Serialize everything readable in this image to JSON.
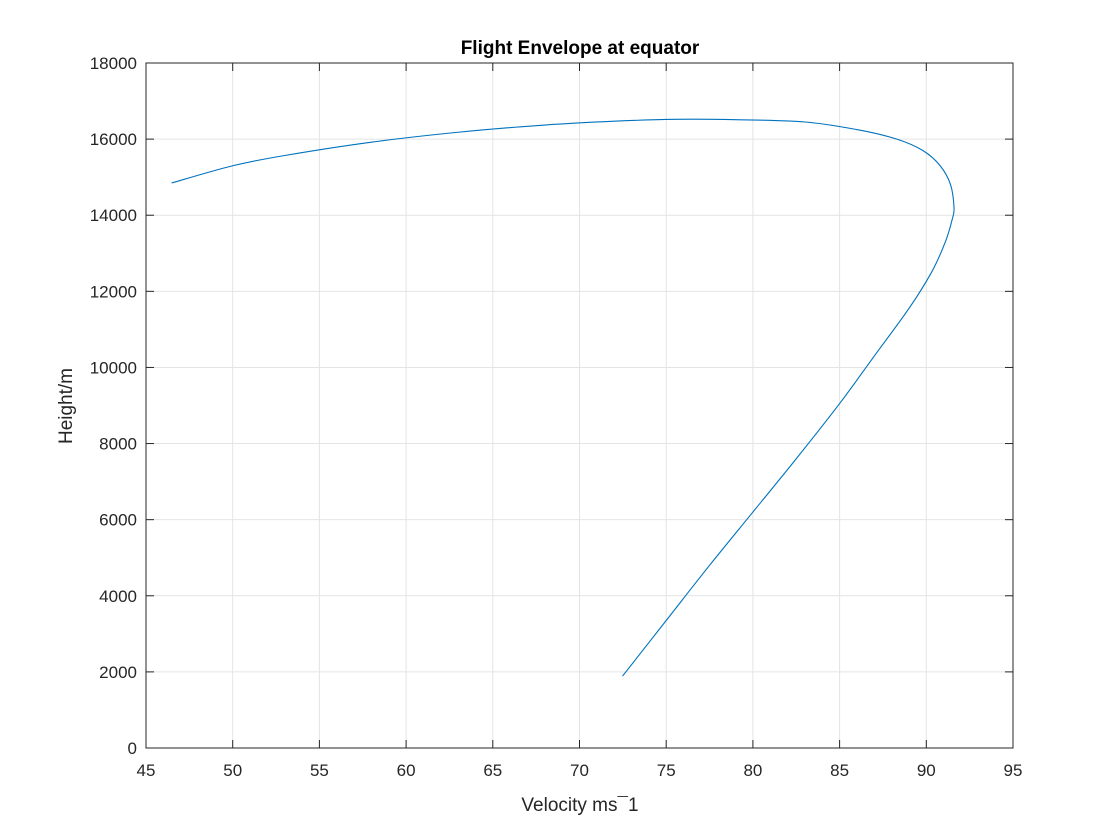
{
  "chart_data": {
    "type": "line",
    "title": "Flight Envelope at equator",
    "xlabel": "Velocity ms¯1",
    "ylabel": "Height/m",
    "xlim": [
      45,
      95
    ],
    "ylim": [
      0,
      18000
    ],
    "xticks": [
      45,
      50,
      55,
      60,
      65,
      70,
      75,
      80,
      85,
      90,
      95
    ],
    "yticks": [
      0,
      2000,
      4000,
      6000,
      8000,
      10000,
      12000,
      14000,
      16000,
      18000
    ],
    "grid": true,
    "box": true,
    "series": [
      {
        "color": "#0072BD",
        "x": [
          72.5,
          75.0,
          77.5,
          80.0,
          82.5,
          85.0,
          87.0,
          89.0,
          90.3,
          91.1,
          91.5,
          91.6,
          91.4,
          90.8,
          89.8,
          88.3,
          86.0,
          83.0,
          79.0,
          75.5,
          72.0,
          68.0,
          63.0,
          58.0,
          53.0,
          50.0,
          46.5
        ],
        "y": [
          1900,
          3350,
          4800,
          6200,
          7600,
          9050,
          10300,
          11550,
          12500,
          13300,
          13900,
          14200,
          14800,
          15300,
          15700,
          16000,
          16250,
          16450,
          16510,
          16520,
          16470,
          16370,
          16180,
          15920,
          15570,
          15300,
          14850
        ]
      }
    ],
    "colors": {
      "axes": "#262626",
      "grid": "#e4e4e4",
      "background": "#ffffff"
    }
  }
}
